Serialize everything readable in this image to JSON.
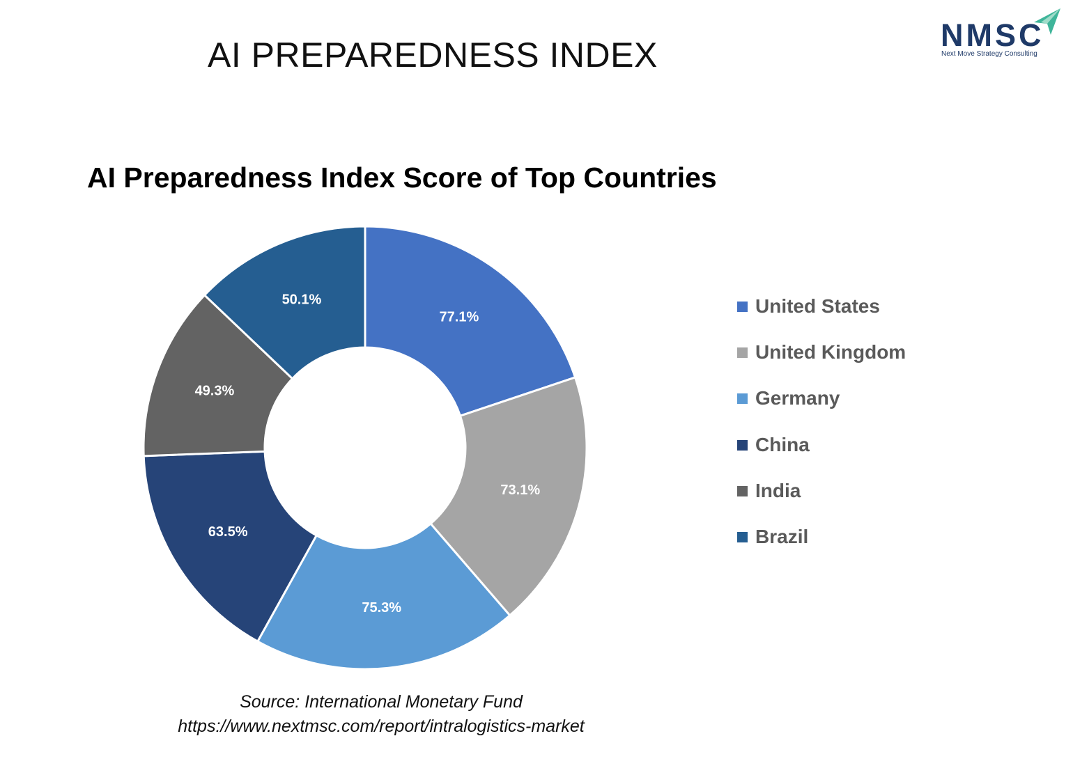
{
  "page": {
    "title": "AI PREPAREDNESS INDEX",
    "source_line": "Source: International Monetary Fund",
    "source_url": "https://www.nextmsc.com/report/intralogistics-market"
  },
  "logo": {
    "mark": "NMSC",
    "tagline": "Next Move Strategy Consulting",
    "color": "#1f3a68",
    "accent_color": "#3fb59a"
  },
  "chart_data": {
    "type": "pie",
    "variant": "donut",
    "title": "AI Preparedness Index Score of Top Countries",
    "categories": [
      "United States",
      "United Kingdom",
      "Germany",
      "China",
      "India",
      "Brazil"
    ],
    "values": [
      77.1,
      73.1,
      75.3,
      63.5,
      49.3,
      50.1
    ],
    "labels": [
      "77.1%",
      "73.1%",
      "75.3%",
      "63.5%",
      "49.3%",
      "50.1%"
    ],
    "colors": [
      "#4472c4",
      "#a5a5a5",
      "#5b9bd5",
      "#264478",
      "#636363",
      "#255e91"
    ],
    "legend_position": "right"
  }
}
